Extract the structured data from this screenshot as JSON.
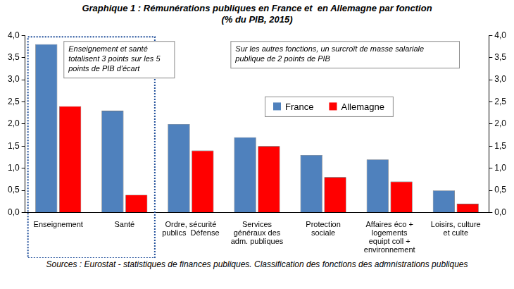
{
  "chart_data": {
    "type": "bar",
    "title": "Graphique 1 : Rémunérations publiques en France et  en Allemagne par fonction",
    "subtitle": "(% du PIB, 2015)",
    "source": "Sources : Eurostat - statistiques de finances publiques. Classification des fonctions des admnistrations publiques",
    "annotations": [
      "Enseignement et santé totalisent 3 points sur les 5 points de PIB d'écart",
      "Sur les autres fonctions, un surcroît de masse salariale publique de 2 points de PIB"
    ],
    "categories": [
      "Enseignement",
      "Santé",
      "Ordre, sécurité\npublics  Défense",
      "Services\ngénéraux des\nadm. publiques",
      "Protection\nsociale",
      "Affaires éco +\nlogements\nequipt coll +\nenvironnement",
      "Loisirs, culture\net culte"
    ],
    "series": [
      {
        "name": "France",
        "color": "#4f81bd",
        "values": [
          3.8,
          2.3,
          2.0,
          1.7,
          1.3,
          1.2,
          0.5
        ]
      },
      {
        "name": "Allemagne",
        "color": "#ff0000",
        "values": [
          2.4,
          0.4,
          1.4,
          1.5,
          0.8,
          0.7,
          0.2
        ]
      }
    ],
    "ylim": [
      0,
      4
    ],
    "yticks": [
      {
        "value": 0,
        "label": "0,0"
      },
      {
        "value": 0.5,
        "label": "0,5"
      },
      {
        "value": 1,
        "label": "1,0"
      },
      {
        "value": 1.5,
        "label": "1,5"
      },
      {
        "value": 2,
        "label": "2,0"
      },
      {
        "value": 2.5,
        "label": "2,5"
      },
      {
        "value": 3,
        "label": "3,0"
      },
      {
        "value": 3.5,
        "label": "3,5"
      },
      {
        "value": 4,
        "label": "4,0"
      }
    ],
    "y2lim": [
      0,
      4
    ],
    "y2ticks": [
      {
        "value": 0,
        "label": "0,0"
      },
      {
        "value": 0.5,
        "label": "0,5"
      },
      {
        "value": 1,
        "label": "1,0"
      },
      {
        "value": 1.5,
        "label": "1,5"
      },
      {
        "value": 2,
        "label": "2,0"
      },
      {
        "value": 2.5,
        "label": "2,5"
      },
      {
        "value": 3,
        "label": "3,0"
      },
      {
        "value": 3.5,
        "label": "3,5"
      },
      {
        "value": 4,
        "label": "4,0"
      }
    ],
    "grid": false,
    "legend": "upper right"
  }
}
